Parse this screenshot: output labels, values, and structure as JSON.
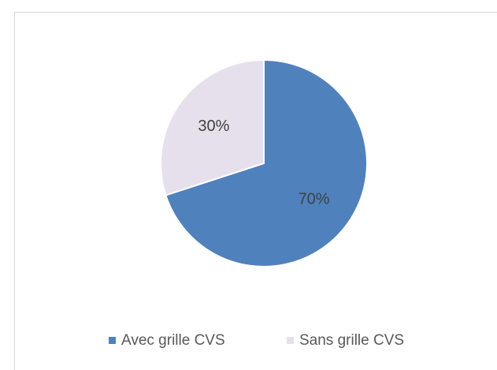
{
  "chart_data": {
    "type": "pie",
    "categories": [
      "Avec grille CVS",
      "Sans grille CVS"
    ],
    "values": [
      70,
      30
    ],
    "value_labels": [
      "70%",
      "30%"
    ],
    "colors": [
      "#4f81bd",
      "#e6e0ec"
    ]
  }
}
